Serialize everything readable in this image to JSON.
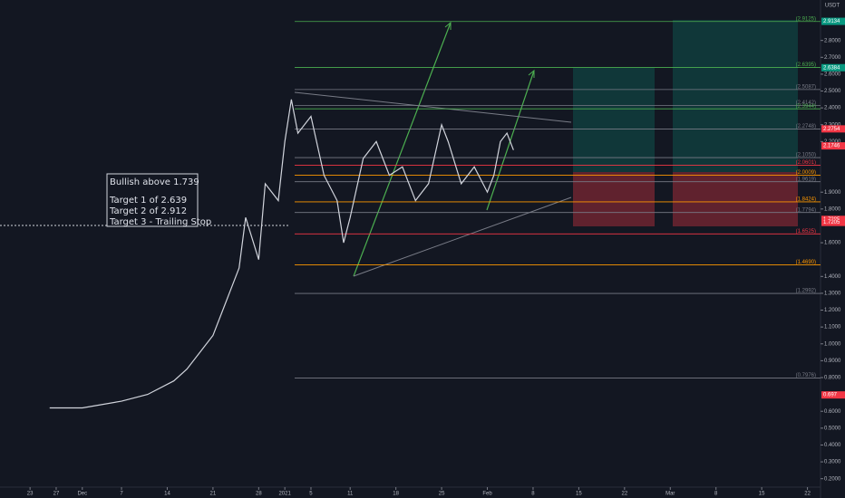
{
  "chart_data": {
    "type": "line",
    "unit": "USDT",
    "annotation": [
      "Bullish above 1.739",
      "Target 1 of 2.639",
      "Target 2 of 2.912",
      "Target 3 - Trailing Stop"
    ],
    "x": [
      3,
      8,
      14,
      18,
      22,
      24,
      26,
      28,
      30,
      32,
      33,
      35,
      36,
      38,
      39,
      40,
      41,
      43,
      45,
      47,
      48,
      49,
      51,
      53,
      55,
      57,
      59,
      61,
      63,
      64,
      66,
      68,
      70,
      71,
      72,
      73,
      74
    ],
    "series": [
      {
        "color": "#d1d4dc",
        "values": [
          0.62,
          0.62,
          0.66,
          0.7,
          0.78,
          0.85,
          0.95,
          1.05,
          1.25,
          1.45,
          1.75,
          1.5,
          1.95,
          1.85,
          2.2,
          2.45,
          2.25,
          2.35,
          2.0,
          1.85,
          1.6,
          1.75,
          2.1,
          2.2,
          2.0,
          2.05,
          1.85,
          1.95,
          2.3,
          2.2,
          1.95,
          2.05,
          1.9,
          2.0,
          2.2,
          2.25,
          2.15
        ]
      }
    ],
    "xlim": [
      -4.6,
      121
    ],
    "xticks": [
      {
        "value": 0,
        "label": "23"
      },
      {
        "value": 4,
        "label": "27"
      },
      {
        "value": 8,
        "label": "Dec"
      },
      {
        "value": 14,
        "label": "7"
      },
      {
        "value": 21,
        "label": "14"
      },
      {
        "value": 28,
        "label": "21"
      },
      {
        "value": 35,
        "label": "28"
      },
      {
        "value": 39,
        "label": "2021"
      },
      {
        "value": 43,
        "label": "5"
      },
      {
        "value": 49,
        "label": "11"
      },
      {
        "value": 56,
        "label": "18"
      },
      {
        "value": 63,
        "label": "25"
      },
      {
        "value": 70,
        "label": "Feb"
      },
      {
        "value": 77,
        "label": "8"
      },
      {
        "value": 84,
        "label": "15"
      },
      {
        "value": 91,
        "label": "22"
      },
      {
        "value": 98,
        "label": "Mar"
      },
      {
        "value": 105,
        "label": "8"
      },
      {
        "value": 112,
        "label": "15"
      },
      {
        "value": 119,
        "label": "22"
      }
    ],
    "ylim": [
      0.15,
      3.04
    ],
    "yticks": [
      {
        "value": 0.2,
        "label": "0.2000"
      },
      {
        "value": 0.3,
        "label": "0.3000"
      },
      {
        "value": 0.4,
        "label": "0.4000"
      },
      {
        "value": 0.5,
        "label": "0.5000"
      },
      {
        "value": 0.6,
        "label": "0.6000"
      },
      {
        "value": 0.8,
        "label": "0.8000"
      },
      {
        "value": 0.9,
        "label": "0.9000"
      },
      {
        "value": 1.0,
        "label": "1.0000"
      },
      {
        "value": 1.1,
        "label": "1.1000"
      },
      {
        "value": 1.2,
        "label": "1.2000"
      },
      {
        "value": 1.3,
        "label": "1.3000"
      },
      {
        "value": 1.4,
        "label": "1.4000"
      },
      {
        "value": 1.6,
        "label": "1.6000"
      },
      {
        "value": 1.8,
        "label": "1.8000"
      },
      {
        "value": 1.9,
        "label": "1.9000"
      },
      {
        "value": 2.2,
        "label": "2.2000"
      },
      {
        "value": 2.3,
        "label": "2.3000"
      },
      {
        "value": 2.4,
        "label": "2.4000"
      },
      {
        "value": 2.5,
        "label": "2.5000"
      },
      {
        "value": 2.6,
        "label": "2.6000"
      },
      {
        "value": 2.7,
        "label": "2.7000"
      },
      {
        "value": 2.8,
        "label": "2.8000"
      }
    ],
    "levels": {
      "values": [
        2.9125,
        2.6395,
        2.5087,
        2.4142,
        2.3944,
        2.2748,
        2.105,
        2.0601,
        2.0009,
        1.9619,
        1.8424,
        1.7794,
        1.6525,
        1.469,
        1.2992,
        0.7976
      ],
      "value_labels": [
        "(2.9125)",
        "(2.6395)",
        "(2.5087)",
        "(2.4142)",
        "(2.3944)",
        "(2.2748)",
        "(2.1050)",
        "(2.0601)",
        "(2.0009)",
        "(1.9619)",
        "(1.8424)",
        "(1.7794)",
        "(1.6525)",
        "(1.4690)",
        "(1.2992)",
        "(0.7976)"
      ],
      "colors": [
        "#4caf50",
        "#4caf50",
        "#787b86",
        "#787b86",
        "#4caf50",
        "#787b86",
        "#787b86",
        "#f23645",
        "#ff9800",
        "#787b86",
        "#ff9800",
        "#787b86",
        "#f23645",
        "#ff9800",
        "#787b86",
        "#787b86"
      ]
    },
    "price_tags": {
      "values": [
        2.9134,
        2.6384,
        2.2754,
        2.1746,
        1.7385,
        1.7205,
        0.697
      ],
      "colors": [
        "#089981",
        "#089981",
        "#f23645",
        "#f23645",
        "#f23645",
        "#f23645",
        "#f23645"
      ]
    }
  }
}
